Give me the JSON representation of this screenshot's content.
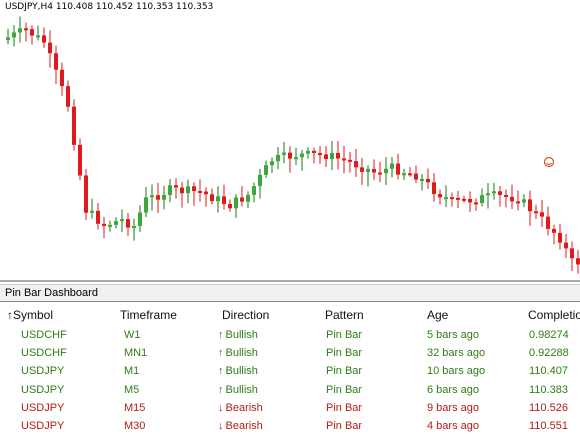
{
  "chart_title": "USDJPY,H4 110.408 110.452 110.353 110.353",
  "panel_title": "Pin Bar Dashboard",
  "columns": [
    "↑Symbol",
    "Timeframe",
    "Direction",
    "Pattern",
    "Age",
    "Completion"
  ],
  "rows": [
    {
      "symbol": "USDCHF",
      "timeframe": "W1",
      "direction": "Bullish",
      "pattern": "Pin Bar",
      "age": "5 bars ago",
      "completion": "0.98274",
      "trend": "bull"
    },
    {
      "symbol": "USDCHF",
      "timeframe": "MN1",
      "direction": "Bullish",
      "pattern": "Pin Bar",
      "age": "32 bars ago",
      "completion": "0.92288",
      "trend": "bull"
    },
    {
      "symbol": "USDJPY",
      "timeframe": "M1",
      "direction": "Bullish",
      "pattern": "Pin Bar",
      "age": "10 bars ago",
      "completion": "110.407",
      "trend": "bull"
    },
    {
      "symbol": "USDJPY",
      "timeframe": "M5",
      "direction": "Bullish",
      "pattern": "Pin Bar",
      "age": "6 bars ago",
      "completion": "110.383",
      "trend": "bull"
    },
    {
      "symbol": "USDJPY",
      "timeframe": "M15",
      "direction": "Bearish",
      "pattern": "Pin Bar",
      "age": "9 bars ago",
      "completion": "110.526",
      "trend": "bear"
    },
    {
      "symbol": "USDJPY",
      "timeframe": "M30",
      "direction": "Bearish",
      "pattern": "Pin Bar",
      "age": "4 bars ago",
      "completion": "110.551",
      "trend": "bear"
    }
  ],
  "colors": {
    "bull": "#2e7d18",
    "bear": "#b31b1b",
    "bull_candle": "#3aa83a",
    "bear_candle": "#e0191b",
    "wick": "#1a7a1a"
  },
  "icons": {
    "marker": "smiley-icon",
    "bull_arrow": "arrow-up-icon",
    "bear_arrow": "arrow-down-icon"
  }
}
